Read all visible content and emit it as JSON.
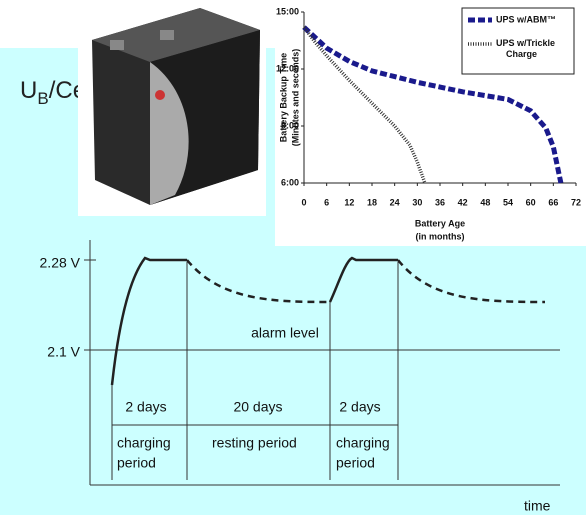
{
  "diagram": {
    "y_label": {
      "main": "U",
      "sub": "B",
      "rest": "/Cell"
    },
    "ticks": [
      "2.28 V",
      "2.1 V"
    ],
    "alarm": "alarm level",
    "durations": [
      "2 days",
      "20 days",
      "2 days"
    ],
    "periods": [
      [
        "charging",
        "period"
      ],
      [
        "resting period"
      ],
      [
        "charging",
        "period"
      ]
    ],
    "x_label": "time"
  },
  "chart_data": {
    "type": "line",
    "y_label": "Battery Backup Time",
    "y_sublabel": "(Minutes and seconds)",
    "x_label": "Battery Age",
    "x_sublabel": "(in months)",
    "xlim": [
      0,
      72
    ],
    "xticks": [
      0,
      6,
      12,
      18,
      24,
      30,
      36,
      42,
      48,
      54,
      60,
      66,
      72
    ],
    "ylim": [
      6,
      15
    ],
    "yticks": [
      {
        "value": 6,
        "label": "6:00"
      },
      {
        "value": 9,
        "label": "9:00"
      },
      {
        "value": 12,
        "label": "12:00"
      },
      {
        "value": 15,
        "label": "15:00"
      }
    ],
    "legend": "upper right",
    "series": [
      {
        "name": "UPS w/ABM™",
        "color": "#1a1a8c",
        "style": "dashed",
        "x": [
          0,
          6,
          12,
          18,
          24,
          30,
          36,
          42,
          48,
          54,
          60,
          64,
          66,
          68
        ],
        "values": [
          14.2,
          13.1,
          12.4,
          11.9,
          11.6,
          11.3,
          11.05,
          10.8,
          10.6,
          10.4,
          9.8,
          8.9,
          7.9,
          6.0
        ]
      },
      {
        "name": "UPS w/Trickle Charge",
        "color": "#333333",
        "style": "dotted",
        "x": [
          0,
          3,
          6,
          12,
          18,
          24,
          28,
          30,
          32
        ],
        "values": [
          14.2,
          13.4,
          12.7,
          11.4,
          10.2,
          9.0,
          8.0,
          7.1,
          6.0
        ]
      }
    ]
  }
}
